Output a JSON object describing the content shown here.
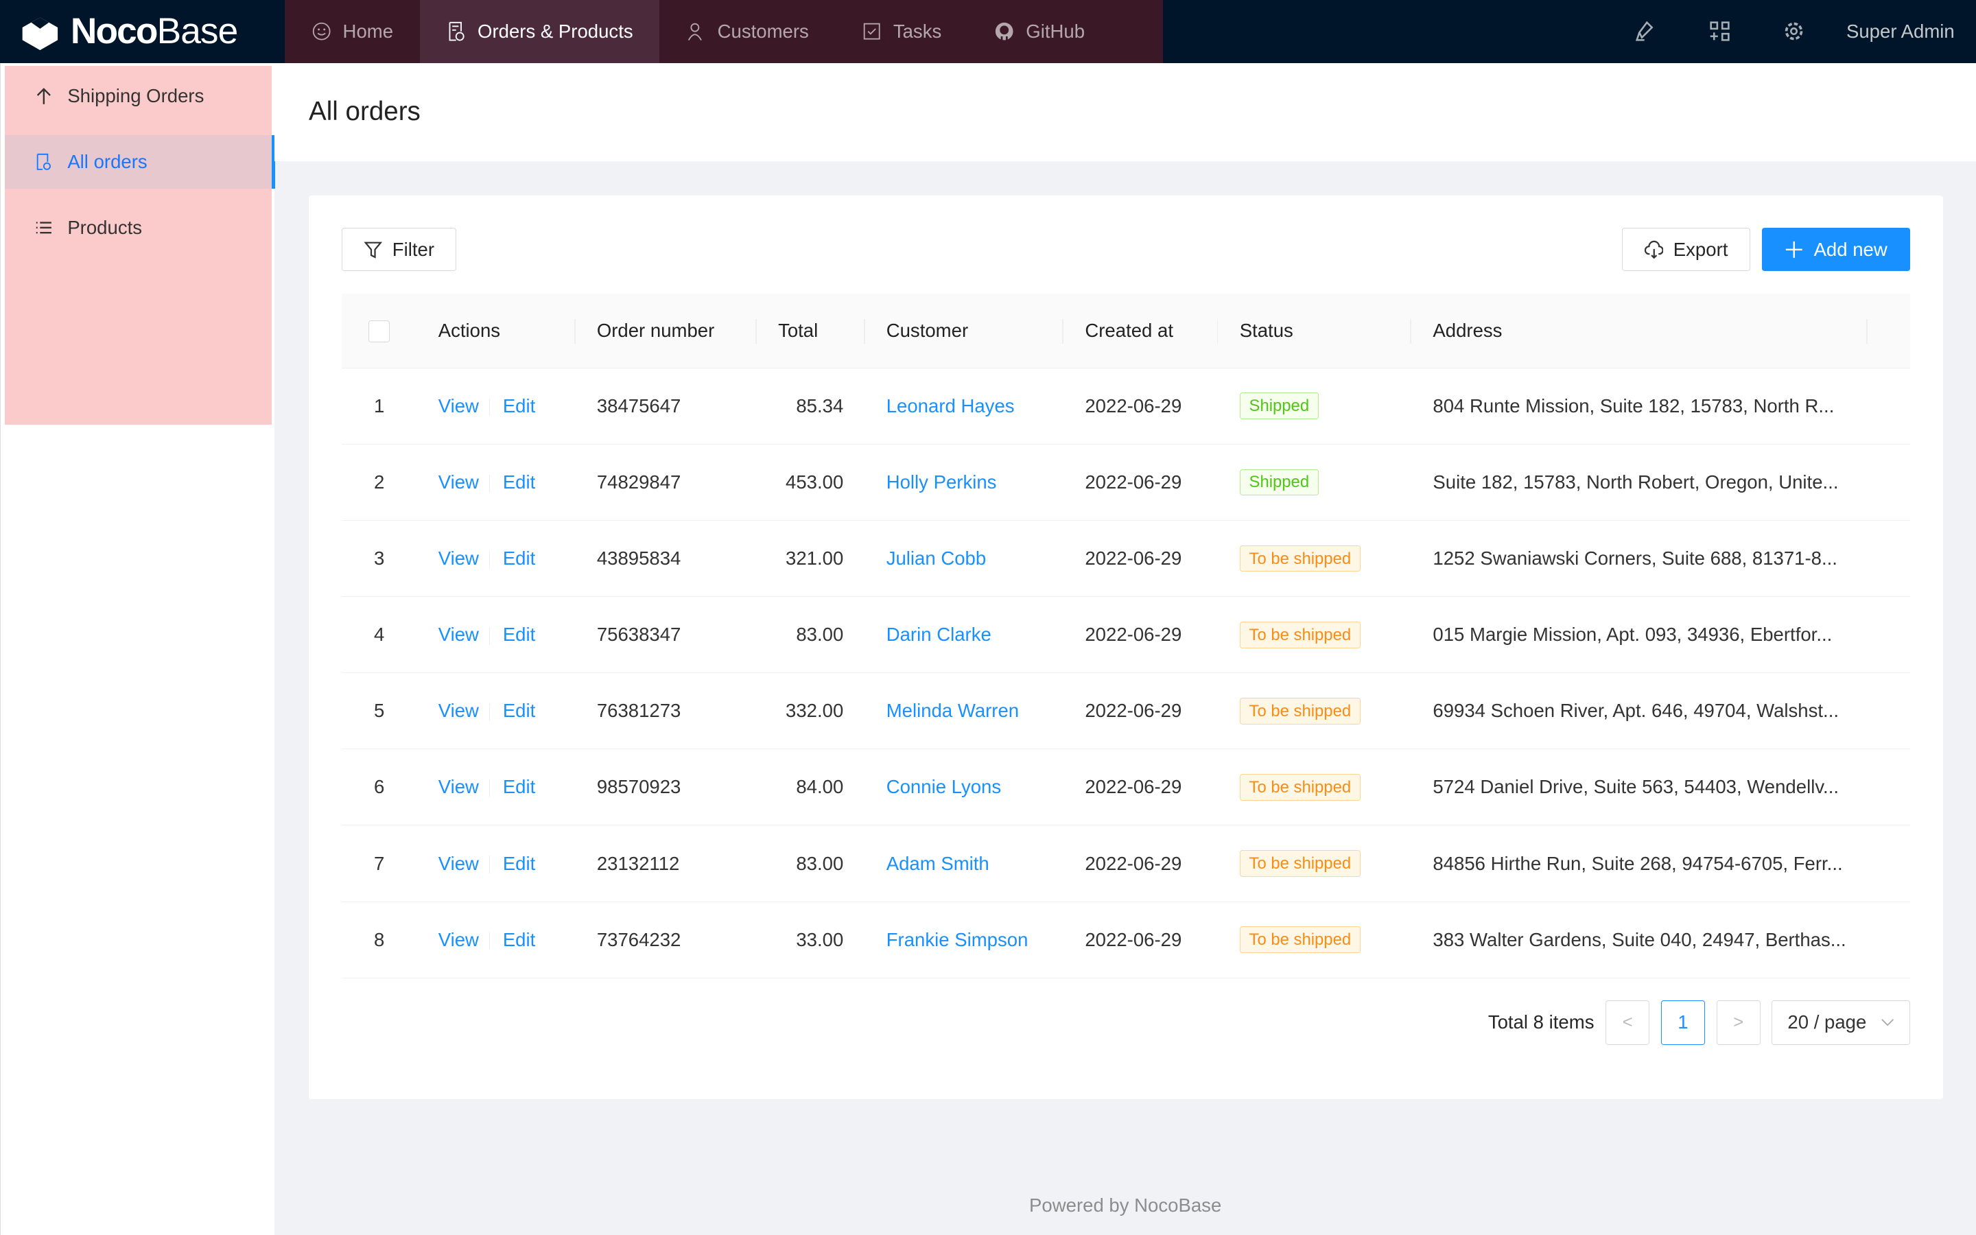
{
  "app": {
    "logo_text_bold": "Noco",
    "logo_text_light": "Base"
  },
  "topnav": {
    "items": [
      {
        "label": "Home",
        "icon": "smile-icon"
      },
      {
        "label": "Orders & Products",
        "icon": "file-check-icon",
        "active": true
      },
      {
        "label": "Customers",
        "icon": "users-icon"
      },
      {
        "label": "Tasks",
        "icon": "checkbox-icon"
      },
      {
        "label": "GitHub",
        "icon": "github-icon"
      }
    ],
    "user": "Super Admin",
    "right_icons": [
      "highlighter-icon",
      "appstore-add-icon",
      "gear-icon"
    ]
  },
  "sidebar": {
    "items": [
      {
        "label": "Shipping Orders",
        "icon": "arrow-up-icon"
      },
      {
        "label": "All orders",
        "icon": "file-check-icon",
        "selected": true
      },
      {
        "label": "Products",
        "icon": "list-icon"
      }
    ]
  },
  "page": {
    "title": "All orders"
  },
  "toolbar": {
    "filter": "Filter",
    "export": "Export",
    "add_new": "Add new"
  },
  "table": {
    "columns": [
      "Actions",
      "Order number",
      "Total",
      "Customer",
      "Created at",
      "Status",
      "Address"
    ],
    "view_label": "View",
    "edit_label": "Edit",
    "rows": [
      {
        "idx": "1",
        "order": "38475647",
        "total": "85.34",
        "customer": "Leonard Hayes",
        "created": "2022-06-29",
        "status": "Shipped",
        "address": "804 Runte Mission, Suite 182, 15783, North R..."
      },
      {
        "idx": "2",
        "order": "74829847",
        "total": "453.00",
        "customer": "Holly Perkins",
        "created": "2022-06-29",
        "status": "Shipped",
        "address": "Suite 182, 15783, North Robert, Oregon, Unite..."
      },
      {
        "idx": "3",
        "order": "43895834",
        "total": "321.00",
        "customer": "Julian Cobb",
        "created": "2022-06-29",
        "status": "To be shipped",
        "address": "1252 Swaniawski Corners, Suite 688, 81371-8..."
      },
      {
        "idx": "4",
        "order": "75638347",
        "total": "83.00",
        "customer": "Darin Clarke",
        "created": "2022-06-29",
        "status": "To be shipped",
        "address": "015 Margie Mission, Apt. 093, 34936, Ebertfor..."
      },
      {
        "idx": "5",
        "order": "76381273",
        "total": "332.00",
        "customer": "Melinda Warren",
        "created": "2022-06-29",
        "status": "To be shipped",
        "address": "69934 Schoen River, Apt. 646, 49704, Walshst..."
      },
      {
        "idx": "6",
        "order": "98570923",
        "total": "84.00",
        "customer": "Connie Lyons",
        "created": "2022-06-29",
        "status": "To be shipped",
        "address": "5724 Daniel Drive, Suite 563, 54403, Wendellv..."
      },
      {
        "idx": "7",
        "order": "23132112",
        "total": "83.00",
        "customer": "Adam Smith",
        "created": "2022-06-29",
        "status": "To be shipped",
        "address": "84856 Hirthe Run, Suite 268, 94754-6705, Ferr..."
      },
      {
        "idx": "8",
        "order": "73764232",
        "total": "33.00",
        "customer": "Frankie Simpson",
        "created": "2022-06-29",
        "status": "To be shipped",
        "address": "383 Walter Gardens, Suite 040, 24947, Berthas..."
      }
    ]
  },
  "status_colors": {
    "Shipped": {
      "color": "#52c41a",
      "bg": "#f6ffed",
      "border": "#b7eb8f"
    },
    "To be shipped": {
      "color": "#fa8c16",
      "bg": "#fff7e6",
      "border": "#ffd591"
    }
  },
  "pagination": {
    "total": "Total 8 items",
    "current": "1",
    "page_size": "20 / page",
    "prev": "<",
    "next": ">"
  },
  "footer": "Powered by NocoBase"
}
